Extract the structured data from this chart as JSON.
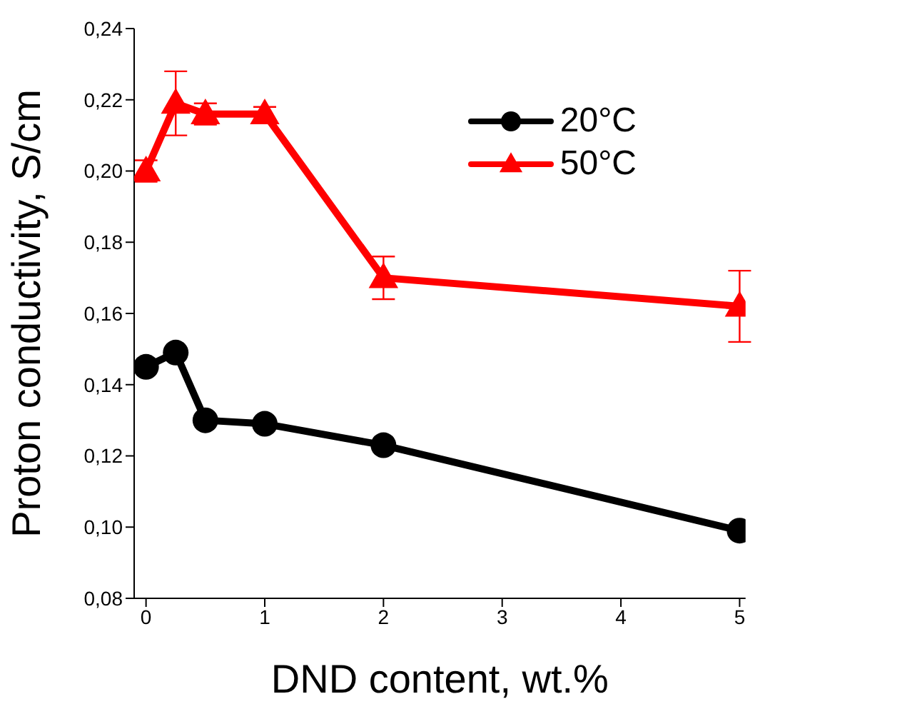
{
  "chart_data": {
    "type": "line",
    "xlabel": "DND content, wt.%",
    "ylabel": "Proton conductivity,  S/cm",
    "x": [
      0,
      0.25,
      0.5,
      1,
      2,
      5
    ],
    "series": [
      {
        "name": "20°C",
        "color": "#000000",
        "marker": "circle",
        "values": [
          0.145,
          0.149,
          0.13,
          0.129,
          0.123,
          0.099
        ]
      },
      {
        "name": "50°C",
        "color": "#ff0000",
        "marker": "triangle",
        "values": [
          0.2,
          0.219,
          0.216,
          0.216,
          0.17,
          0.162
        ],
        "errors": [
          [
            0.197,
            0.203
          ],
          [
            0.21,
            0.228
          ],
          [
            0.213,
            0.219
          ],
          [
            0.214,
            0.218
          ],
          [
            0.164,
            0.176
          ],
          [
            0.152,
            0.172
          ]
        ]
      }
    ],
    "xlim": [
      -0.1,
      5.05
    ],
    "xticks": [
      0,
      1,
      2,
      3,
      4,
      5
    ],
    "ylim": [
      0.08,
      0.24
    ],
    "yticks": [
      {
        "value": 0.08,
        "label": "0,08"
      },
      {
        "value": 0.1,
        "label": "0,10"
      },
      {
        "value": 0.12,
        "label": "0,12"
      },
      {
        "value": 0.14,
        "label": "0,14"
      },
      {
        "value": 0.16,
        "label": "0,16"
      },
      {
        "value": 0.18,
        "label": "0,18"
      },
      {
        "value": 0.2,
        "label": "0,20"
      },
      {
        "value": 0.22,
        "label": "0,22"
      },
      {
        "value": 0.24,
        "label": "0,24"
      }
    ],
    "grid": false,
    "legend": "top right"
  }
}
